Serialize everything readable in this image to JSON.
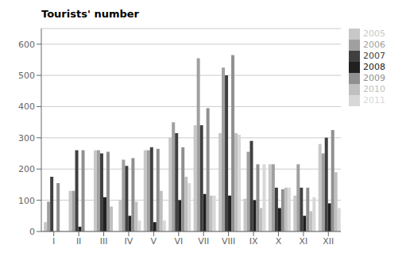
{
  "chart_data": {
    "type": "bar",
    "title": "Tourists' number",
    "categories": [
      "I",
      "II",
      "III",
      "IV",
      "V",
      "VI",
      "VII",
      "VIII",
      "IX",
      "X",
      "XI",
      "XII"
    ],
    "series": [
      {
        "name": "2005",
        "color": "#c8c8c8",
        "values": [
          30,
          130,
          260,
          100,
          260,
          300,
          340,
          315,
          105,
          215,
          115,
          280
        ]
      },
      {
        "name": "2006",
        "color": "#a0a0a0",
        "values": [
          95,
          130,
          260,
          230,
          260,
          350,
          555,
          525,
          255,
          215,
          215,
          250
        ]
      },
      {
        "name": "2007",
        "color": "#404040",
        "values": [
          175,
          260,
          250,
          210,
          270,
          315,
          340,
          500,
          290,
          140,
          140,
          300
        ]
      },
      {
        "name": "2008",
        "color": "#202020",
        "values": [
          0,
          15,
          110,
          50,
          30,
          100,
          120,
          115,
          100,
          75,
          50,
          90
        ]
      },
      {
        "name": "2009",
        "color": "#909090",
        "values": [
          155,
          260,
          255,
          235,
          265,
          270,
          395,
          565,
          215,
          135,
          140,
          325
        ]
      },
      {
        "name": "2010",
        "color": "#c0c0c0",
        "values": [
          0,
          0,
          80,
          95,
          130,
          175,
          115,
          315,
          75,
          140,
          65,
          190
        ]
      },
      {
        "name": "2011",
        "color": "#d8d8d8",
        "values": [
          0,
          0,
          0,
          35,
          35,
          155,
          115,
          310,
          215,
          140,
          110,
          75
        ]
      }
    ],
    "ylim": [
      0,
      650
    ],
    "yticks": [
      0,
      100,
      200,
      300,
      400,
      500,
      600
    ],
    "grid": true,
    "legend": "right"
  }
}
